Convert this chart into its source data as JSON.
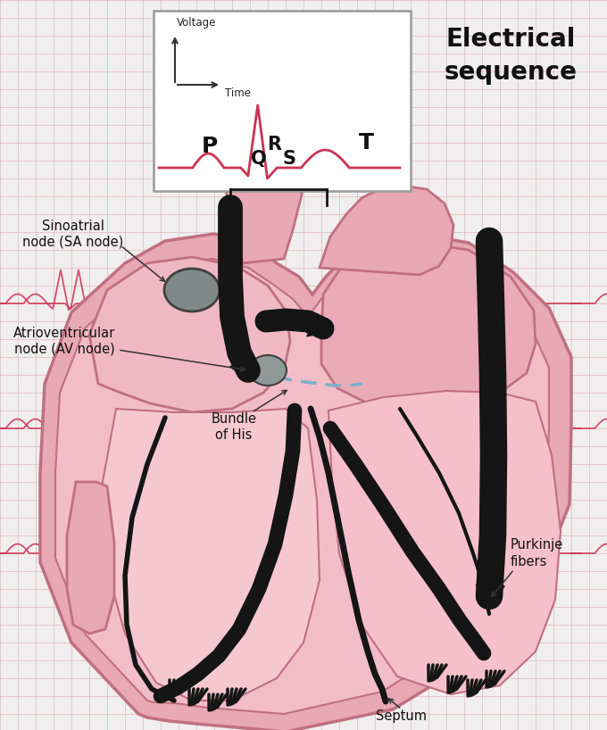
{
  "bg_color": "#f0eeee",
  "ecg_color": "#cc3355",
  "grid_color": "#e0b8c0",
  "heart_outer": "#e8a8b4",
  "heart_inner": "#f0c0c8",
  "heart_edge": "#c87888",
  "heart_dark_edge": "#b06070",
  "node_fill": "#909090",
  "node_edge": "#555555",
  "black": "#151515",
  "ecg_box_bg": "#ffffff",
  "ecg_box_edge": "#aaaaaa",
  "bundle_dot_color": "#88aacc",
  "title": "Electrical\nsequence",
  "voltage_label": "Voltage",
  "time_label": "Time",
  "P": "P",
  "Q": "Q",
  "R": "R",
  "S": "S",
  "T": "T",
  "sa_label": "Sinoatrial\nnode (SA node)",
  "av_label": "Atrioventricular\nnode (AV node)",
  "bundle_label": "Bundle\nof His",
  "purkinje_label": "Purkinje\nfibers",
  "septum_label": "Septum"
}
